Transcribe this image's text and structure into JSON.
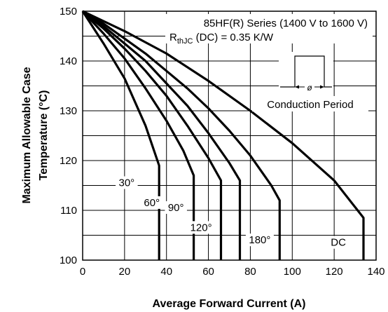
{
  "chart_data": {
    "type": "line",
    "title": "",
    "xlabel": "Average Forward Current (A)",
    "ylabel_line1": "Maximum Allowable Case",
    "ylabel_line2": "Temperature (°C)",
    "xlim": [
      0,
      140
    ],
    "ylim": [
      100,
      150
    ],
    "xticks": [
      0,
      20,
      40,
      60,
      80,
      100,
      120,
      140
    ],
    "yticks": [
      100,
      110,
      120,
      130,
      140,
      150
    ],
    "grid": true,
    "annotations": {
      "series_line": "85HF(R) Series (1400 V to 1600 V)",
      "rth_main": "R",
      "rth_sub": "thJC",
      "rth_rest": " (DC) = 0.35 K/W",
      "conduction_label": "Conduction Period",
      "phi_symbol": "ø"
    },
    "series": [
      {
        "label": "30°",
        "points": [
          [
            0,
            150
          ],
          [
            10,
            143.5
          ],
          [
            20,
            136.5
          ],
          [
            30,
            127
          ],
          [
            36.5,
            119
          ],
          [
            36.5,
            100
          ]
        ]
      },
      {
        "label": "60°",
        "points": [
          [
            0,
            150
          ],
          [
            10,
            145.5
          ],
          [
            20,
            140.5
          ],
          [
            30,
            134.5
          ],
          [
            40,
            128
          ],
          [
            48,
            122
          ],
          [
            53,
            117
          ],
          [
            53,
            100
          ]
        ]
      },
      {
        "label": "90°",
        "points": [
          [
            0,
            150
          ],
          [
            10,
            146.5
          ],
          [
            20,
            142.5
          ],
          [
            30,
            138
          ],
          [
            40,
            133
          ],
          [
            50,
            127
          ],
          [
            60,
            120.5
          ],
          [
            66,
            116
          ],
          [
            66,
            100
          ]
        ]
      },
      {
        "label": "120°",
        "points": [
          [
            0,
            150
          ],
          [
            10,
            147
          ],
          [
            20,
            143.5
          ],
          [
            30,
            140
          ],
          [
            40,
            135.5
          ],
          [
            50,
            131
          ],
          [
            60,
            125.5
          ],
          [
            70,
            119.5
          ],
          [
            75,
            116
          ],
          [
            75,
            100
          ]
        ]
      },
      {
        "label": "180°",
        "points": [
          [
            0,
            150
          ],
          [
            10,
            147.5
          ],
          [
            20,
            144.5
          ],
          [
            30,
            141.5
          ],
          [
            40,
            138
          ],
          [
            50,
            134.5
          ],
          [
            60,
            130.5
          ],
          [
            70,
            126
          ],
          [
            80,
            121
          ],
          [
            90,
            115
          ],
          [
            94,
            112
          ],
          [
            94,
            100
          ]
        ]
      },
      {
        "label": "DC",
        "points": [
          [
            0,
            150
          ],
          [
            20,
            146
          ],
          [
            40,
            141.5
          ],
          [
            60,
            136
          ],
          [
            80,
            130
          ],
          [
            100,
            123.5
          ],
          [
            120,
            116
          ],
          [
            134,
            108.5
          ],
          [
            134,
            100
          ]
        ]
      }
    ]
  }
}
